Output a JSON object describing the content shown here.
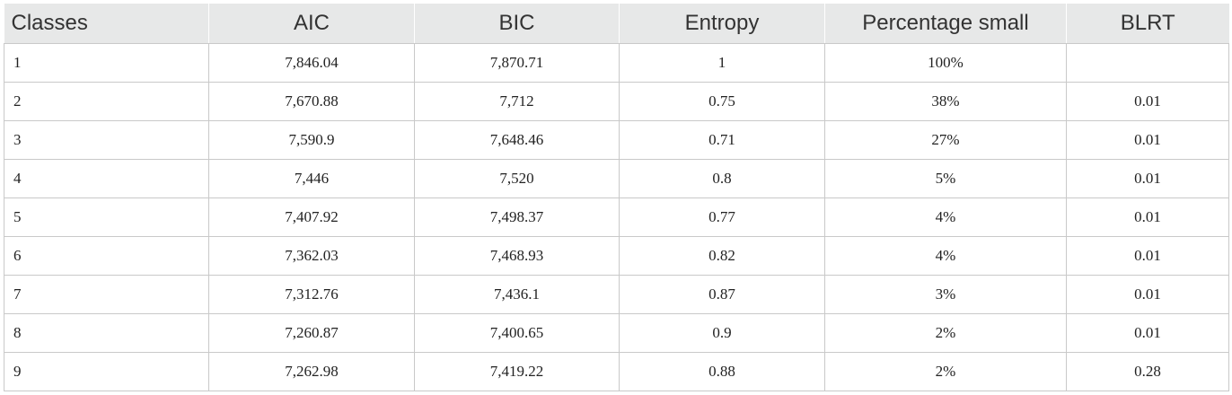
{
  "table": {
    "headers": [
      "Classes",
      "AIC",
      "BIC",
      "Entropy",
      "Percentage small",
      "BLRT"
    ],
    "rows": [
      [
        "1",
        "7,846.04",
        "7,870.71",
        "1",
        "100%",
        ""
      ],
      [
        "2",
        "7,670.88",
        "7,712",
        "0.75",
        "38%",
        "0.01"
      ],
      [
        "3",
        "7,590.9",
        "7,648.46",
        "0.71",
        "27%",
        "0.01"
      ],
      [
        "4",
        "7,446",
        "7,520",
        "0.8",
        "5%",
        "0.01"
      ],
      [
        "5",
        "7,407.92",
        "7,498.37",
        "0.77",
        "4%",
        "0.01"
      ],
      [
        "6",
        "7,362.03",
        "7,468.93",
        "0.82",
        "4%",
        "0.01"
      ],
      [
        "7",
        "7,312.76",
        "7,436.1",
        "0.87",
        "3%",
        "0.01"
      ],
      [
        "8",
        "7,260.87",
        "7,400.65",
        "0.9",
        "2%",
        "0.01"
      ],
      [
        "9",
        "7,262.98",
        "7,419.22",
        "0.88",
        "2%",
        "0.28"
      ]
    ]
  }
}
